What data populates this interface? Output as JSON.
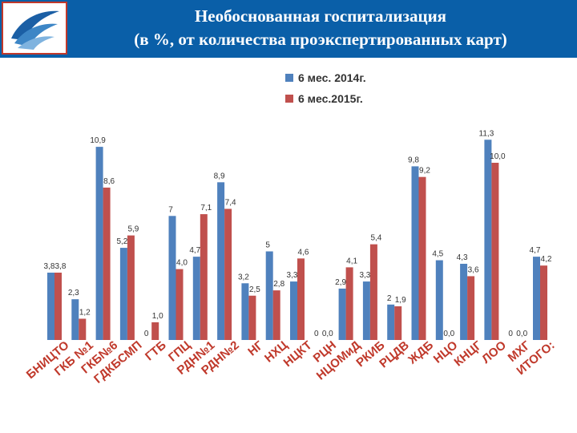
{
  "header": {
    "title_line1": "Необоснованная госпитализация",
    "title_line2": "(в %, от  количества проэкспертированных карт)"
  },
  "colors": {
    "header_bg": "#0a5fa8",
    "series_2014": "#4f81bd",
    "series_2015": "#c0504d",
    "category_text": "#c0392b"
  },
  "chart_data": {
    "type": "bar",
    "title": "Необоснованная госпитализация (в %, от  количества проэкспертированных карт)",
    "categories": [
      "БНИЦТО",
      "ГКБ №1",
      "ГКБ№6",
      "ГДКБСМП",
      "ГТБ",
      "ГПЦ",
      "РДН№1",
      "РДН№2",
      "НГ",
      "НХЦ",
      "НЦКТ",
      "РЦН",
      "НЦОМиД",
      "РКИБ",
      "РЦДВ",
      "ЖДБ",
      "НЦО",
      "КНЦГ",
      "ЛОО",
      "МХГ",
      "ИТОГО:"
    ],
    "series": [
      {
        "name": "6 мес. 2014г.",
        "values": [
          3.8,
          2.3,
          10.9,
          5.2,
          0,
          7,
          4.7,
          8.9,
          3.2,
          5,
          3.3,
          0,
          2.9,
          3.3,
          2,
          9.8,
          4.5,
          4.3,
          11.3,
          0,
          4.7
        ],
        "labels": [
          "3,8",
          "2,3",
          "10,9",
          "5,2",
          "0",
          "7",
          "4,7",
          "8,9",
          "3,2",
          "5",
          "3,3",
          "0",
          "2,9",
          "3,3",
          "2",
          "9,8",
          "4,5",
          "4,3",
          "11,3",
          "0",
          "4,7"
        ]
      },
      {
        "name": "6 мес.2015г.",
        "values": [
          3.8,
          1.2,
          8.6,
          5.9,
          1.0,
          4.0,
          7.1,
          7.4,
          2.5,
          2.8,
          4.6,
          0,
          4.1,
          5.4,
          1.9,
          9.2,
          0,
          3.6,
          10.0,
          0,
          4.2
        ],
        "labels": [
          "3,8",
          "1,2",
          "8,6",
          "5,9",
          "1,0",
          "4,0",
          "7,1",
          "7,4",
          "2,5",
          "2,8",
          "4,6",
          "0,0",
          "4,1",
          "5,4",
          "1,9",
          "9,2",
          "0,0",
          "3,6",
          "10,0",
          "0,0",
          "4,2"
        ]
      }
    ],
    "ylim": [
      0,
      12
    ],
    "grid": false,
    "legend_position": "top-center"
  }
}
